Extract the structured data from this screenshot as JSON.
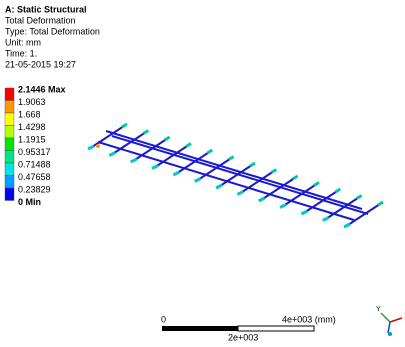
{
  "header": {
    "title": "A: Static Structural",
    "lines": [
      "Total Deformation",
      "Type: Total Deformation",
      "Unit: mm",
      "Time: 1.",
      "21-05-2015 19:27"
    ]
  },
  "legend": {
    "labels": [
      "2.1446 Max",
      "1.9063",
      "1.668",
      "1.4298",
      "1.1915",
      "0.95317",
      "0.71488",
      "0.47658",
      "0.23829",
      "0 Min"
    ],
    "colors": [
      "#ff0000",
      "#ff9b00",
      "#ffff00",
      "#b4ff00",
      "#00e600",
      "#00e68c",
      "#00e6e6",
      "#00a0ff",
      "#0000ff"
    ]
  },
  "scale_bar": {
    "start": "0",
    "end": "4e+003 (mm)",
    "middle": "2e+003"
  },
  "triad": {
    "axis": "Y"
  }
}
